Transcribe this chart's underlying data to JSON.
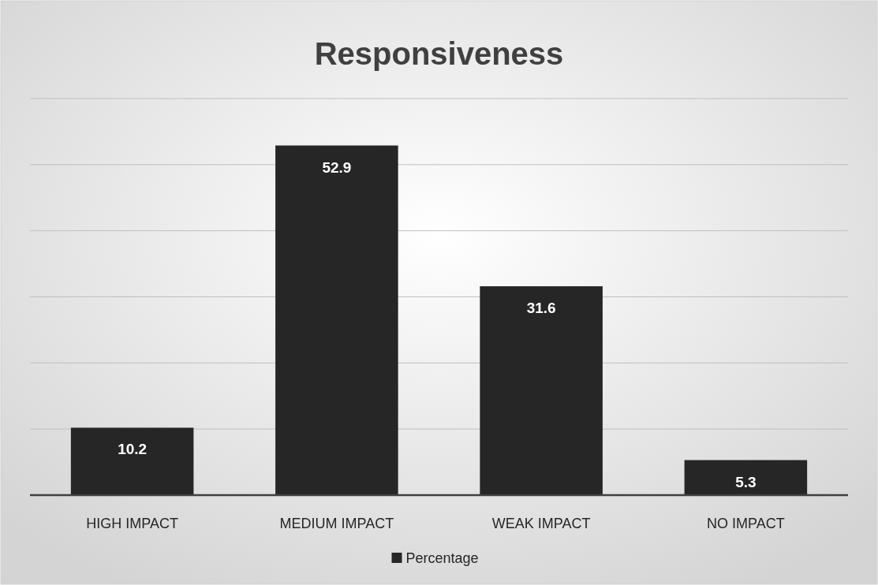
{
  "chart_data": {
    "type": "bar",
    "title": "Responsiveness",
    "categories": [
      "HIGH IMPACT",
      "MEDIUM IMPACT",
      "WEAK IMPACT",
      "NO IMPACT"
    ],
    "series": [
      {
        "name": "Percentage",
        "color": "#262626",
        "values": [
          10.2,
          52.9,
          31.6,
          5.3
        ]
      }
    ],
    "ylim": [
      0,
      60
    ],
    "yticks": [
      {
        "value": 0,
        "label": null
      },
      {
        "value": 10,
        "label": null
      },
      {
        "value": 20,
        "label": null
      },
      {
        "value": 30,
        "label": null
      },
      {
        "value": 40,
        "label": null
      },
      {
        "value": 50,
        "label": null
      },
      {
        "value": 60,
        "label": null
      }
    ],
    "tick_labels": "x",
    "grid": "y",
    "legend": "bottom",
    "data_labels": true
  }
}
